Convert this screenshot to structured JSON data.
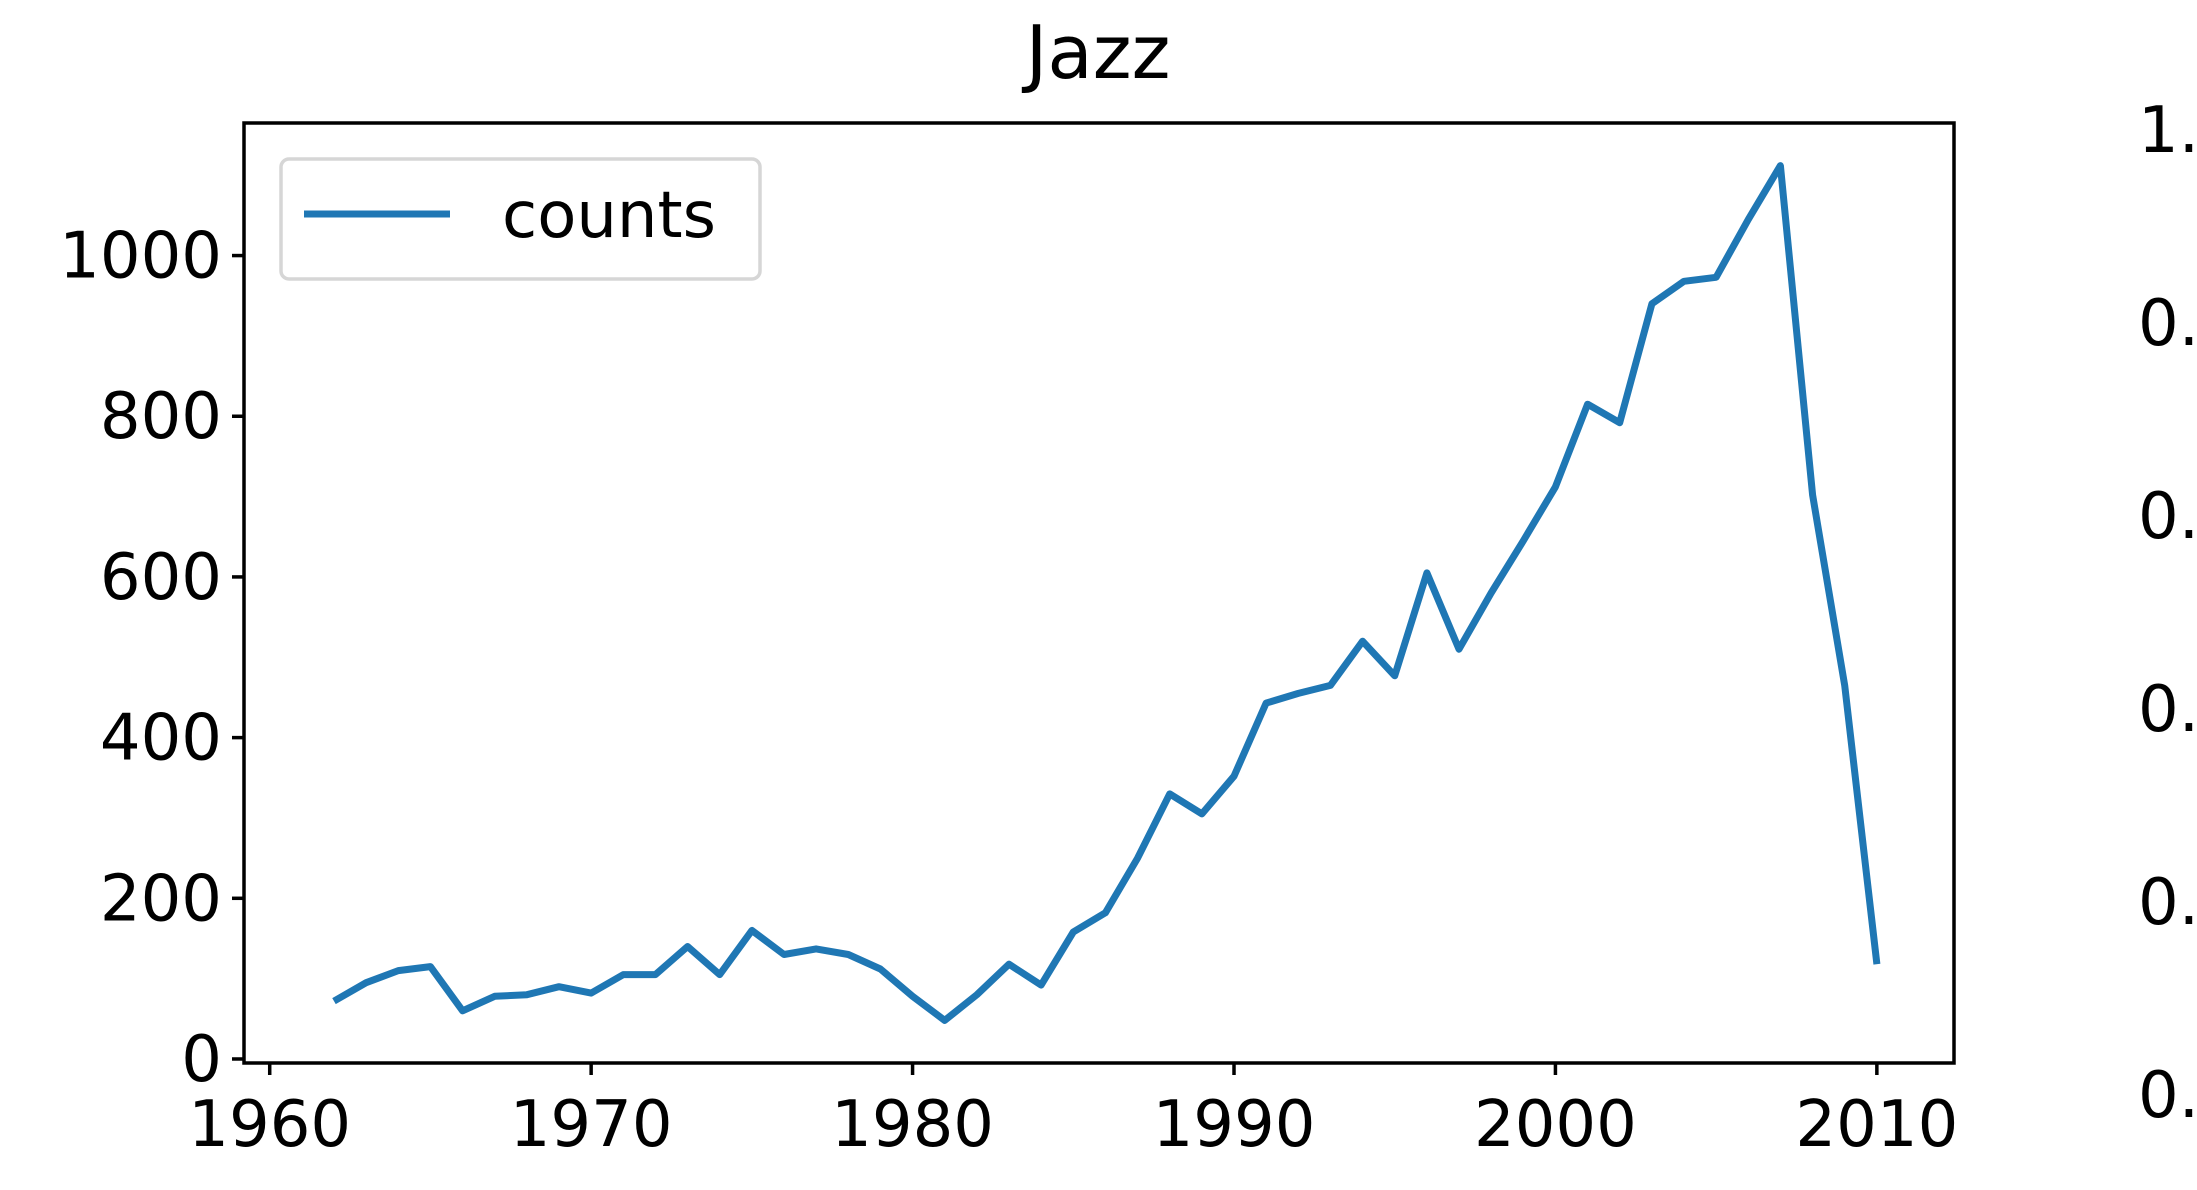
{
  "chart_data": [
    {
      "type": "line",
      "title": "Jazz",
      "xlabel": "",
      "ylabel": "",
      "xlim": [
        1959.2,
        2012.4
      ],
      "ylim": [
        -5,
        1165
      ],
      "xticks": [
        1960,
        1970,
        1980,
        1990,
        2000,
        2010
      ],
      "yticks": [
        0,
        200,
        400,
        600,
        800,
        1000
      ],
      "legend": {
        "position": "top-left",
        "entries": [
          "counts"
        ]
      },
      "grid": false,
      "series": [
        {
          "name": "counts",
          "color": "#1f77b4",
          "x": [
            1962,
            1963,
            1964,
            1965,
            1966,
            1967,
            1968,
            1969,
            1970,
            1971,
            1972,
            1973,
            1974,
            1975,
            1976,
            1977,
            1978,
            1979,
            1980,
            1981,
            1982,
            1983,
            1984,
            1985,
            1986,
            1987,
            1988,
            1989,
            1990,
            1991,
            1992,
            1993,
            1994,
            1995,
            1996,
            1997,
            1998,
            1999,
            2000,
            2001,
            2002,
            2003,
            2004,
            2005,
            2006,
            2007,
            2008,
            2009,
            2010
          ],
          "y": [
            72,
            95,
            110,
            115,
            60,
            78,
            80,
            90,
            82,
            105,
            105,
            140,
            105,
            160,
            130,
            137,
            130,
            112,
            78,
            48,
            80,
            118,
            92,
            158,
            182,
            250,
            330,
            305,
            352,
            443,
            455,
            465,
            520,
            477,
            605,
            510,
            580,
            645,
            712,
            815,
            792,
            940,
            968,
            973,
            1045,
            1112,
            702,
            465,
            118
          ]
        }
      ]
    },
    {
      "type": "line",
      "title": "",
      "yticks_visible": [
        "1.",
        "0.",
        "0.",
        "0.",
        "0.",
        "0."
      ]
    }
  ]
}
